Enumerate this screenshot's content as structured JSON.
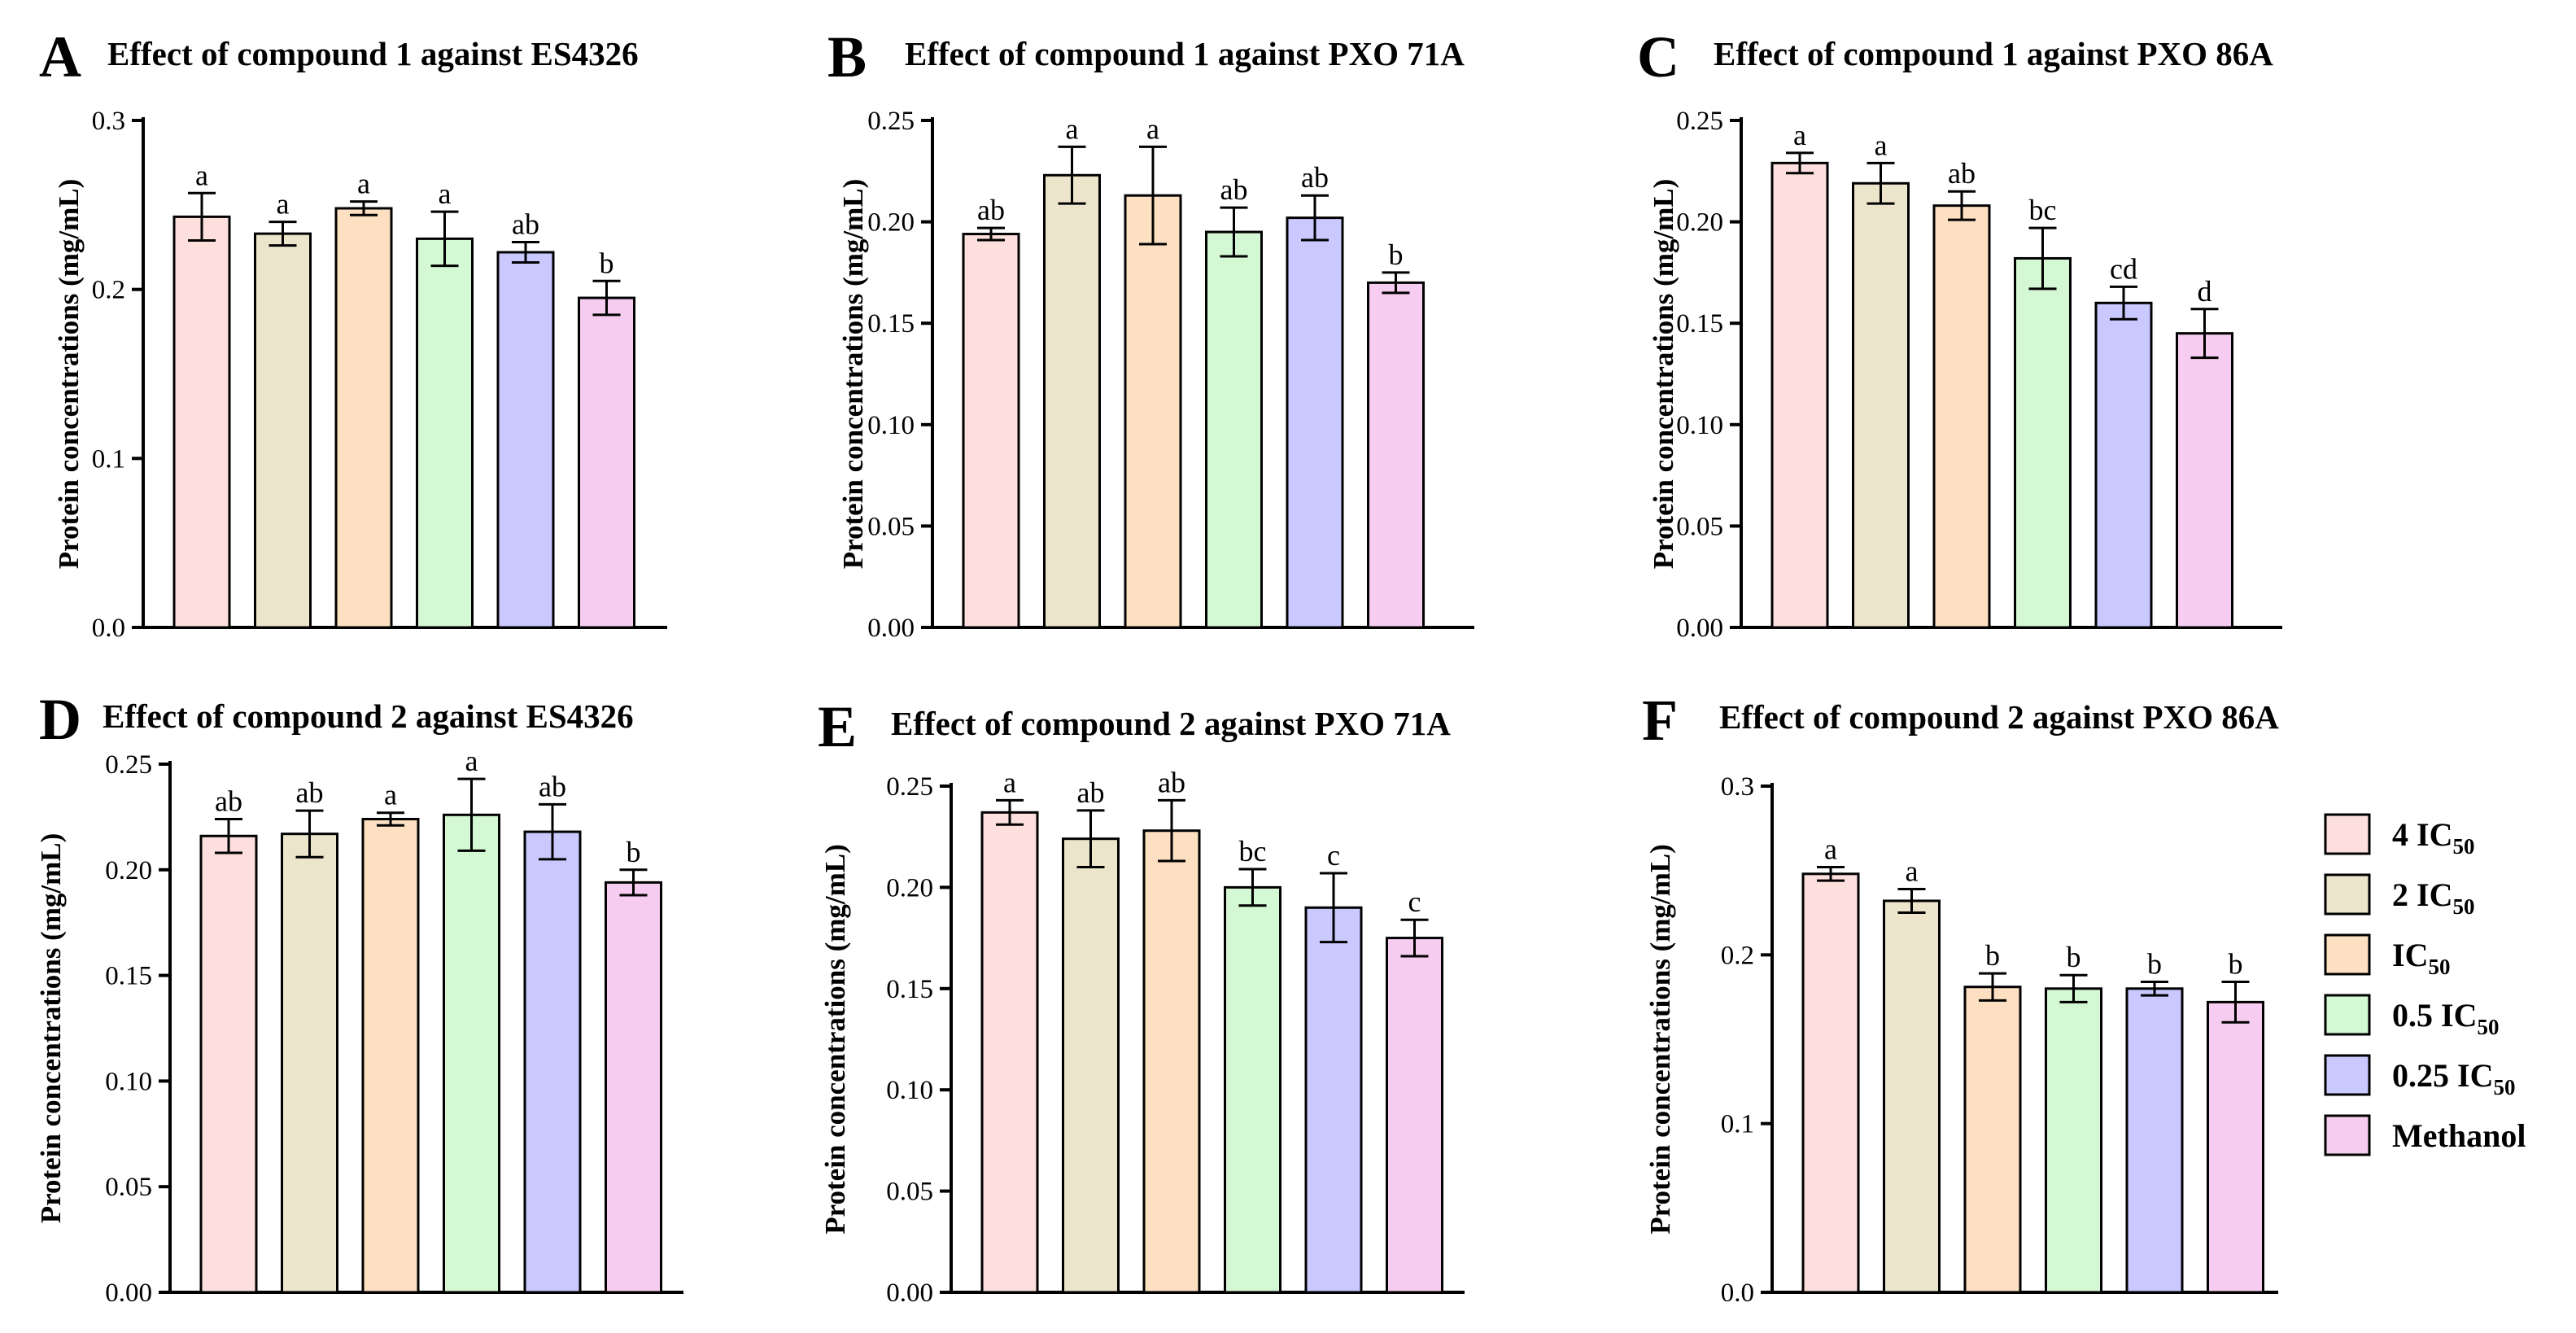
{
  "chart_data": [
    {
      "id": "A",
      "letter": "A",
      "type": "bar",
      "title": "Effect of compound 1 against ES4326",
      "ylabel": "Protein concentrations (mg/mL)",
      "ylim": [
        0,
        0.3
      ],
      "yticks": [
        "0.0",
        "0.1",
        "0.2",
        "0.3"
      ],
      "categories": [
        "4 IC50",
        "2 IC50",
        "IC50",
        "0.5 IC50",
        "0.25 IC50",
        "Methanol"
      ],
      "values": [
        0.243,
        0.233,
        0.248,
        0.23,
        0.222,
        0.195
      ],
      "errors": [
        0.014,
        0.007,
        0.004,
        0.016,
        0.006,
        0.01
      ],
      "labels": [
        "a",
        "a",
        "a",
        "a",
        "ab",
        "b"
      ]
    },
    {
      "id": "B",
      "letter": "B",
      "type": "bar",
      "title": "Effect of compound 1 against PXO 71A",
      "ylabel": "Protein concentrations (mg/mL)",
      "ylim": [
        0,
        0.25
      ],
      "yticks": [
        "0.00",
        "0.05",
        "0.10",
        "0.15",
        "0.20",
        "0.25"
      ],
      "categories": [
        "4 IC50",
        "2 IC50",
        "IC50",
        "0.5 IC50",
        "0.25 IC50",
        "Methanol"
      ],
      "values": [
        0.194,
        0.223,
        0.213,
        0.195,
        0.202,
        0.17
      ],
      "errors": [
        0.003,
        0.014,
        0.024,
        0.012,
        0.011,
        0.005
      ],
      "labels": [
        "ab",
        "a",
        "a",
        "ab",
        "ab",
        "b"
      ]
    },
    {
      "id": "C",
      "letter": "C",
      "type": "bar",
      "title": "Effect of compound 1 against PXO 86A",
      "ylabel": "Protein concentrations (mg/mL)",
      "ylim": [
        0,
        0.25
      ],
      "yticks": [
        "0.00",
        "0.05",
        "0.10",
        "0.15",
        "0.20",
        "0.25"
      ],
      "categories": [
        "4 IC50",
        "2 IC50",
        "IC50",
        "0.5 IC50",
        "0.25 IC50",
        "Methanol"
      ],
      "values": [
        0.229,
        0.219,
        0.208,
        0.182,
        0.16,
        0.145
      ],
      "errors": [
        0.005,
        0.01,
        0.007,
        0.015,
        0.008,
        0.012
      ],
      "labels": [
        "a",
        "a",
        "ab",
        "bc",
        "cd",
        "d"
      ]
    },
    {
      "id": "D",
      "letter": "D",
      "type": "bar",
      "title": "Effect of compound 2 against ES4326",
      "ylabel": "Protein concentrations (mg/mL)",
      "ylim": [
        0,
        0.25
      ],
      "yticks": [
        "0.00",
        "0.05",
        "0.10",
        "0.15",
        "0.20",
        "0.25"
      ],
      "categories": [
        "4 IC50",
        "2 IC50",
        "IC50",
        "0.5 IC50",
        "0.25 IC50",
        "Methanol"
      ],
      "values": [
        0.216,
        0.217,
        0.224,
        0.226,
        0.218,
        0.194
      ],
      "errors": [
        0.008,
        0.011,
        0.003,
        0.017,
        0.013,
        0.006
      ],
      "labels": [
        "ab",
        "ab",
        "a",
        "a",
        "ab",
        "b"
      ]
    },
    {
      "id": "E",
      "letter": "E",
      "type": "bar",
      "title": "Effect of compound 2 against  PXO 71A",
      "ylabel": "Protein concentrations (mg/mL)",
      "ylim": [
        0,
        0.25
      ],
      "yticks": [
        "0.00",
        "0.05",
        "0.10",
        "0.15",
        "0.20",
        "0.25"
      ],
      "categories": [
        "4 IC50",
        "2 IC50",
        "IC50",
        "0.5 IC50",
        "0.25 IC50",
        "Methanol"
      ],
      "values": [
        0.237,
        0.224,
        0.228,
        0.2,
        0.19,
        0.175
      ],
      "errors": [
        0.006,
        0.014,
        0.015,
        0.009,
        0.017,
        0.009
      ],
      "labels": [
        "a",
        "ab",
        "ab",
        "bc",
        "c",
        "c"
      ]
    },
    {
      "id": "F",
      "letter": "F",
      "type": "bar",
      "title": "Effect of compound 2 against  PXO 86A",
      "ylabel": "Protein concentrations (mg/mL)",
      "ylim": [
        0,
        0.3
      ],
      "yticks": [
        "0.0",
        "0.1",
        "0.2",
        "0.3"
      ],
      "categories": [
        "4 IC50",
        "2 IC50",
        "IC50",
        "0.5 IC50",
        "0.25 IC50",
        "Methanol"
      ],
      "values": [
        0.248,
        0.232,
        0.181,
        0.18,
        0.18,
        0.172
      ],
      "errors": [
        0.004,
        0.007,
        0.008,
        0.008,
        0.004,
        0.012
      ],
      "labels": [
        "a",
        "a",
        "b",
        "b",
        "b",
        "b"
      ]
    }
  ],
  "legend": {
    "position": "right-of-panel-F",
    "items": [
      {
        "prefix": "4 IC",
        "sub": "50",
        "fill": "#fde0de"
      },
      {
        "prefix": "2 IC",
        "sub": "50",
        "fill": "#ede5cb"
      },
      {
        "prefix": "IC",
        "sub": "50",
        "fill": "#fde0c2"
      },
      {
        "prefix": "0.5 IC",
        "sub": "50",
        "fill": "#d3f8d3"
      },
      {
        "prefix": "0.25 IC",
        "sub": "50",
        "fill": "#c9c9ff"
      },
      {
        "prefix": "Methanol",
        "sub": "",
        "fill": "#f7ccf1"
      }
    ]
  },
  "colors": {
    "bar_fills": [
      "#fde0de",
      "#ede5cb",
      "#fde0c2",
      "#d3f8d3",
      "#c9c9ff",
      "#f7ccf1"
    ],
    "stroke": "#000000"
  }
}
